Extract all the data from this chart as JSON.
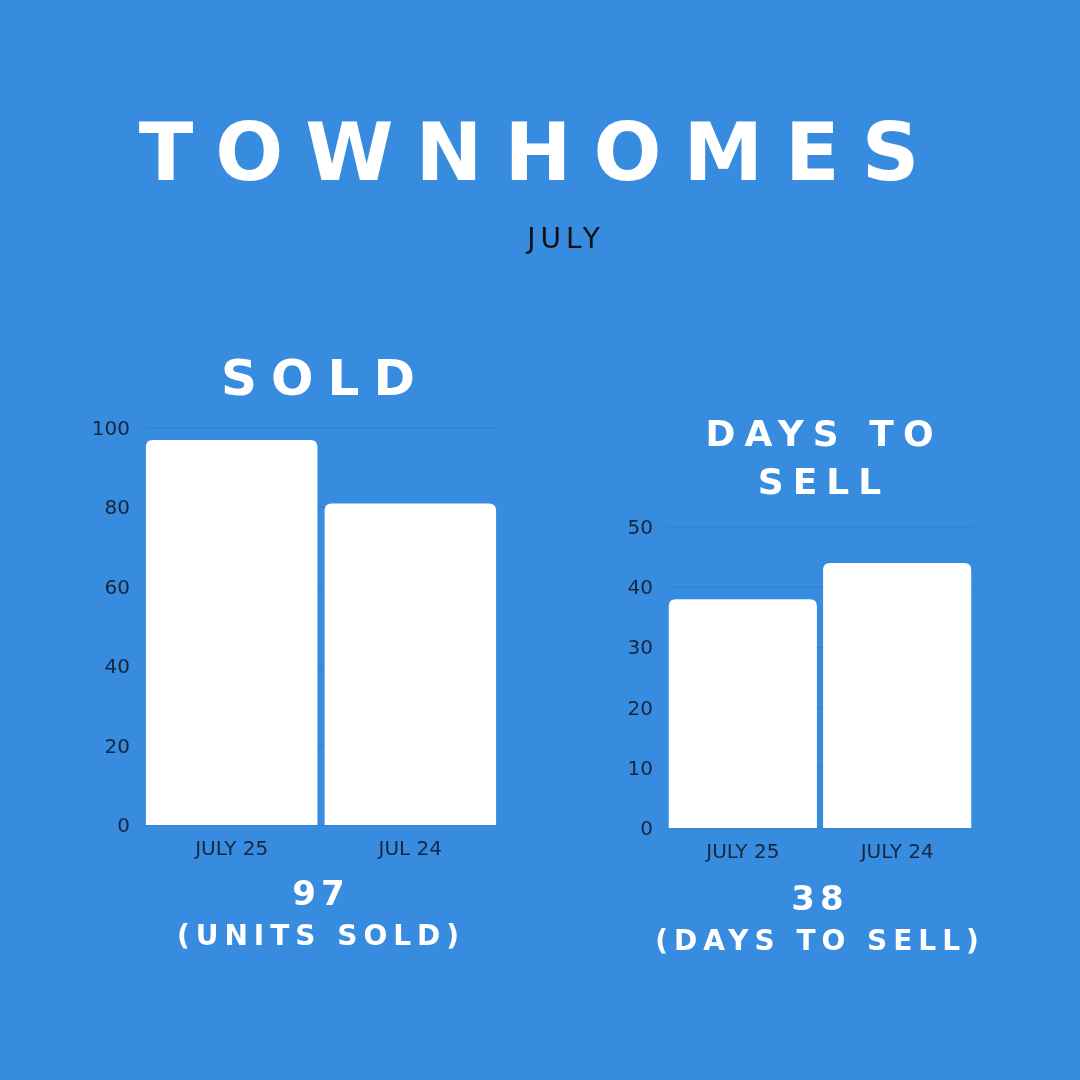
{
  "chart_data": [
    {
      "type": "other",
      "title": "TOWNHOMES",
      "subtitle": "JULY"
    },
    {
      "type": "bar",
      "title": "SOLD",
      "categories": [
        "JULY 25",
        "JUL 24"
      ],
      "values": [
        97,
        81
      ],
      "color": "#ffffff",
      "ylim": [
        0,
        100
      ],
      "yticks": [
        0,
        20,
        40,
        60,
        80,
        100
      ],
      "grid": "y",
      "annotations": [
        "97",
        "(UNITS SOLD)"
      ]
    },
    {
      "type": "bar",
      "title": "DAYS TO SELL",
      "categories": [
        "JULY 25",
        "JULY 24"
      ],
      "values": [
        38,
        44
      ],
      "color": "#ffffff",
      "ylim": [
        0,
        50
      ],
      "yticks": [
        0,
        10,
        20,
        30,
        40,
        50
      ],
      "grid": "y",
      "annotations": [
        "38",
        "(DAYS TO SELL)"
      ]
    }
  ]
}
